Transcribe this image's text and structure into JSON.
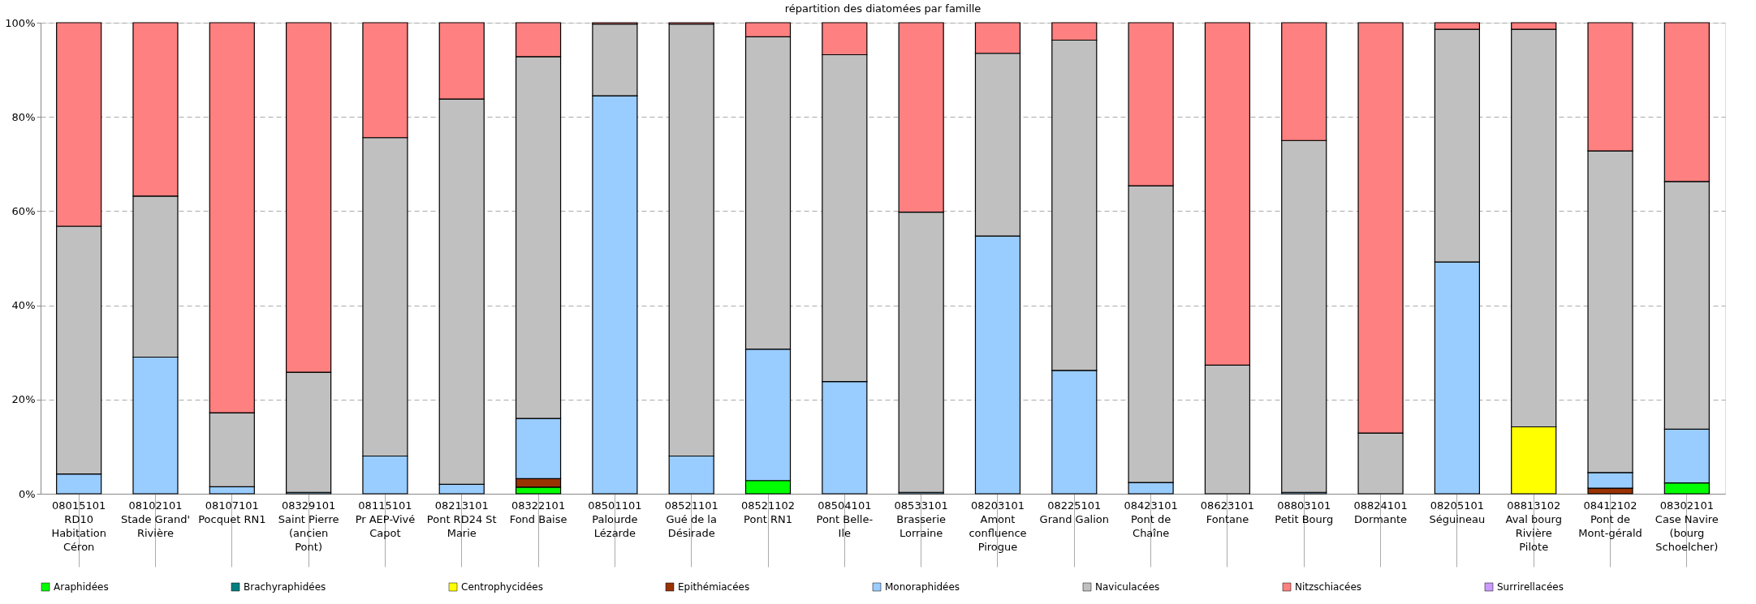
{
  "chart_data": {
    "type": "bar",
    "title": "répartition des diatomées par famille",
    "stacked": true,
    "categories": [
      "08015101 RD10 Habitation Céron",
      "08102101 Stade Grand' Rivière",
      "08107101 Pocquet RN1",
      "08329101 Saint Pierre (ancien Pont)",
      "08115101 Pr AEP-Vivé Capot",
      "08213101 Pont RD24 St Marie",
      "08322101 Fond Baise",
      "08501101 Palourde Lézarde",
      "08521101 Gué de la Désirade",
      "08521102 Pont RN1",
      "08504101 Pont Belle-Ile",
      "08533101 Brasserie Lorraine",
      "08203101 Amont confluence Pirogue",
      "08225101 Grand Galion",
      "08423101 Pont de Chaîne",
      "08623101 Fontane",
      "08803101 Petit Bourg",
      "08824101 Dormante",
      "08205101 Séguineau",
      "08813102 Aval bourg Rivière Pilote",
      "08412102 Pont de Mont-gérald",
      "08302101 Case Navire (bourg Schoelcher)"
    ],
    "series": [
      {
        "name": "Araphidées",
        "color": "#00ff00",
        "values": [
          0,
          0,
          0,
          0,
          0,
          0,
          1.4,
          0,
          0,
          2.8,
          0,
          0,
          0,
          0,
          0,
          0,
          0,
          0,
          0,
          0,
          0,
          2.3
        ]
      },
      {
        "name": "Brachyraphidées",
        "color": "#008080",
        "values": [
          0,
          0,
          0,
          0,
          0,
          0,
          0,
          0,
          0,
          0,
          0,
          0,
          0,
          0,
          0,
          0,
          0,
          0,
          0,
          0,
          0,
          0
        ]
      },
      {
        "name": "Centrophycidées",
        "color": "#ffff00",
        "values": [
          0,
          0,
          0,
          0,
          0,
          0,
          0,
          0,
          0,
          0,
          0,
          0,
          0,
          0,
          0,
          0,
          0,
          0,
          0,
          14.2,
          0,
          0
        ]
      },
      {
        "name": "Epithémiacées",
        "color": "#993300",
        "values": [
          0,
          0,
          0,
          0,
          0,
          0,
          1.8,
          0,
          0,
          0,
          0,
          0,
          0,
          0,
          0,
          0,
          0,
          0,
          0,
          0,
          1.2,
          0
        ]
      },
      {
        "name": "Monoraphidées",
        "color": "#99ccff",
        "values": [
          4.2,
          29,
          1.5,
          0.3,
          8,
          2,
          12.8,
          84.5,
          8,
          27.9,
          23.8,
          0.3,
          54.7,
          26.2,
          2.4,
          0,
          0.3,
          0,
          49.2,
          0,
          3.3,
          11.4
        ]
      },
      {
        "name": "Naviculacées",
        "color": "#c0c0c0",
        "values": [
          52.6,
          34.2,
          15.7,
          25.5,
          67.6,
          81.8,
          76.8,
          15.2,
          91.7,
          66.3,
          69.4,
          59.5,
          38.8,
          70.1,
          63,
          27.3,
          74.7,
          12.9,
          49.4,
          84.4,
          68.3,
          52.6
        ]
      },
      {
        "name": "Nitzschiacées",
        "color": "#ff8080",
        "values": [
          43.2,
          36.8,
          82.8,
          74.2,
          24.4,
          16.2,
          7.2,
          0.3,
          0.3,
          3,
          6.8,
          40.2,
          6.5,
          3.7,
          34.6,
          72.7,
          25,
          87.1,
          1.4,
          1.4,
          27.2,
          33.7
        ]
      },
      {
        "name": "Surrirellacées",
        "color": "#cc99ff",
        "values": [
          0,
          0,
          0,
          0,
          0,
          0,
          0,
          0,
          0,
          0,
          0,
          0,
          0,
          0,
          0,
          0,
          0,
          0,
          0,
          0,
          0,
          0
        ]
      }
    ],
    "ylim": [
      0,
      100
    ],
    "yticks": [
      {
        "value": 0,
        "label": "0%"
      },
      {
        "value": 20,
        "label": "20%"
      },
      {
        "value": 40,
        "label": "40%"
      },
      {
        "value": 60,
        "label": "60%"
      },
      {
        "value": 80,
        "label": "80%"
      },
      {
        "value": 100,
        "label": "100%"
      }
    ],
    "grid": "y",
    "legend": "bottom"
  }
}
